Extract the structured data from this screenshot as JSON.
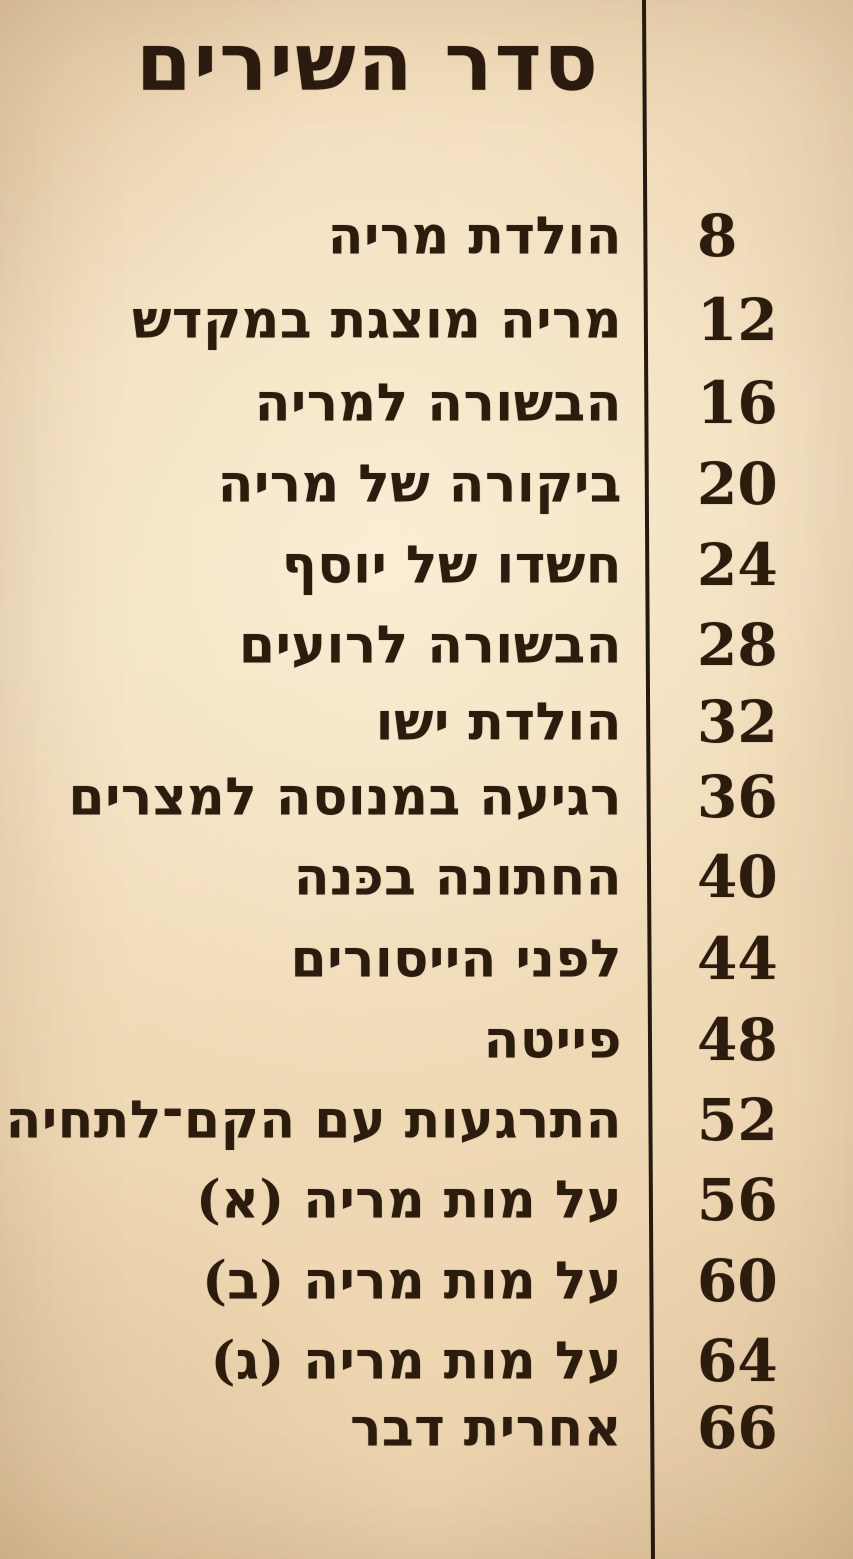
{
  "page": {
    "title": "סדר השירים",
    "colors": {
      "paper": "#f1dcba",
      "ink": "#2c1c0e",
      "rule": "#241a0f"
    }
  },
  "toc": {
    "entries": [
      {
        "title": "הולדת מריה",
        "page": "8"
      },
      {
        "title": "מריה מוצגת במקדש",
        "page": "12"
      },
      {
        "title": "הבשורה למריה",
        "page": "16"
      },
      {
        "title": "ביקורה של מריה",
        "page": "20"
      },
      {
        "title": "חשדו של יוסף",
        "page": "24"
      },
      {
        "title": "הבשורה לרועים",
        "page": "28"
      },
      {
        "title": "הולדת ישו",
        "page": "32"
      },
      {
        "title": "רגיעה במנוסה למצרים",
        "page": "36"
      },
      {
        "title": "החתונה בכּנה",
        "page": "40"
      },
      {
        "title": "לפני הייסורים",
        "page": "44"
      },
      {
        "title": "פייטה",
        "page": "48"
      },
      {
        "title": "התרגעות עם הקם־לתחיה",
        "page": "52"
      },
      {
        "title": "על מות מריה (א)",
        "page": "56"
      },
      {
        "title": "על מות מריה (ב)",
        "page": "60"
      },
      {
        "title": "על מות מריה (ג)",
        "page": "64"
      },
      {
        "title": "אחרית דבר",
        "page": "66"
      }
    ]
  }
}
